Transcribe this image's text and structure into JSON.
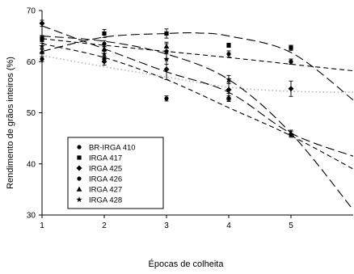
{
  "chart_data": {
    "type": "scatter",
    "xlabel": "Épocas de colheita",
    "ylabel": "Rendimento de grãos inteiros (%)",
    "xlim": [
      1,
      6
    ],
    "ylim": [
      30,
      70
    ],
    "x_ticks": [
      1,
      2,
      3,
      4,
      5
    ],
    "y_ticks": [
      30,
      40,
      50,
      60,
      70
    ],
    "grid": false,
    "legend_position": "lower-left",
    "series": [
      {
        "name": "BR-IRGA 410",
        "marker": "circle",
        "line_style": "dotted",
        "points": [
          {
            "x": 1,
            "y": 60.5,
            "err": 0.5
          },
          {
            "x": 2,
            "y": 60.5,
            "err": 0.6
          },
          {
            "x": 3,
            "y": 52.8,
            "err": 0.5
          },
          {
            "x": 4,
            "y": 52.8,
            "err": 0.5
          },
          {
            "x": 5,
            "y": 60.0,
            "err": 0.5
          }
        ],
        "fit": [
          [
            1,
            61.2
          ],
          [
            2,
            59.0
          ],
          [
            3,
            57.0
          ],
          [
            4,
            55.0
          ],
          [
            5,
            54.2
          ],
          [
            6,
            54.0
          ]
        ]
      },
      {
        "name": "IRGA 417",
        "marker": "square",
        "line_style": "long-dash",
        "points": [
          {
            "x": 1,
            "y": 64.5,
            "err": 0.6
          },
          {
            "x": 2,
            "y": 65.5,
            "err": 0.8
          },
          {
            "x": 3,
            "y": 65.5,
            "err": 0.9
          },
          {
            "x": 4,
            "y": 63.2,
            "err": 0.4
          },
          {
            "x": 5,
            "y": 62.7,
            "err": 0.5
          }
        ],
        "fit": [
          [
            1,
            62.0
          ],
          [
            2,
            64.8
          ],
          [
            3,
            65.5
          ],
          [
            3.5,
            65.6
          ],
          [
            4,
            65.0
          ],
          [
            5,
            61.8
          ],
          [
            6,
            52.5
          ]
        ]
      },
      {
        "name": "IRGA 425",
        "marker": "diamond",
        "line_style": "long-dash",
        "points": [
          {
            "x": 1,
            "y": 67.5,
            "err": 0.6
          },
          {
            "x": 2,
            "y": 60.0,
            "err": 0.7
          },
          {
            "x": 3,
            "y": 58.5,
            "err": 2.0
          },
          {
            "x": 4,
            "y": 54.5,
            "err": 1.5
          },
          {
            "x": 5,
            "y": 54.7,
            "err": 1.5
          }
        ],
        "fit": [
          [
            1,
            67.0
          ],
          [
            2,
            62.5
          ],
          [
            3,
            58.0
          ],
          [
            4,
            54.0
          ],
          [
            5,
            46.0
          ],
          [
            6,
            41.5
          ]
        ]
      },
      {
        "name": "IRGA 426",
        "marker": "circle",
        "line_style": "dashed",
        "points": [
          {
            "x": 1,
            "y": 64.5,
            "err": 0.5
          },
          {
            "x": 2,
            "y": 63.5,
            "err": 0.6
          },
          {
            "x": 3,
            "y": 62.0,
            "err": 1.5
          },
          {
            "x": 4,
            "y": 61.5,
            "err": 0.6
          },
          {
            "x": 5,
            "y": 60.0,
            "err": 0.5
          }
        ],
        "fit": [
          [
            1,
            64.5
          ],
          [
            2,
            63.2
          ],
          [
            3,
            62.0
          ],
          [
            4,
            60.8
          ],
          [
            5,
            59.5
          ],
          [
            6,
            58.2
          ]
        ]
      },
      {
        "name": "IRGA 427",
        "marker": "triangle",
        "line_style": "long-dash",
        "points": [
          {
            "x": 1,
            "y": 62.0,
            "err": 0.5
          },
          {
            "x": 2,
            "y": 62.5,
            "err": 0.5
          },
          {
            "x": 3,
            "y": 63.0,
            "err": 0.8
          },
          {
            "x": 4,
            "y": 53.0,
            "err": 0.8
          },
          {
            "x": 5,
            "y": 46.0,
            "err": 0.6
          }
        ],
        "fit": [
          [
            1,
            65.0
          ],
          [
            2,
            64.0
          ],
          [
            3,
            61.5
          ],
          [
            4,
            56.5
          ],
          [
            5,
            46.0
          ],
          [
            6,
            31.0
          ]
        ]
      },
      {
        "name": "IRGA 428",
        "marker": "star",
        "line_style": "dashed",
        "points": [
          {
            "x": 1,
            "y": 63.0,
            "err": 0.6
          },
          {
            "x": 2,
            "y": 61.5,
            "err": 0.6
          },
          {
            "x": 3,
            "y": 60.5,
            "err": 1.0
          },
          {
            "x": 4,
            "y": 56.5,
            "err": 0.8
          },
          {
            "x": 5,
            "y": 45.8,
            "err": 0.6
          }
        ],
        "fit": [
          [
            1,
            63.5
          ],
          [
            2,
            60.8
          ],
          [
            3,
            56.5
          ],
          [
            4,
            51.0
          ],
          [
            5,
            45.5
          ],
          [
            6,
            39.0
          ]
        ]
      }
    ]
  }
}
